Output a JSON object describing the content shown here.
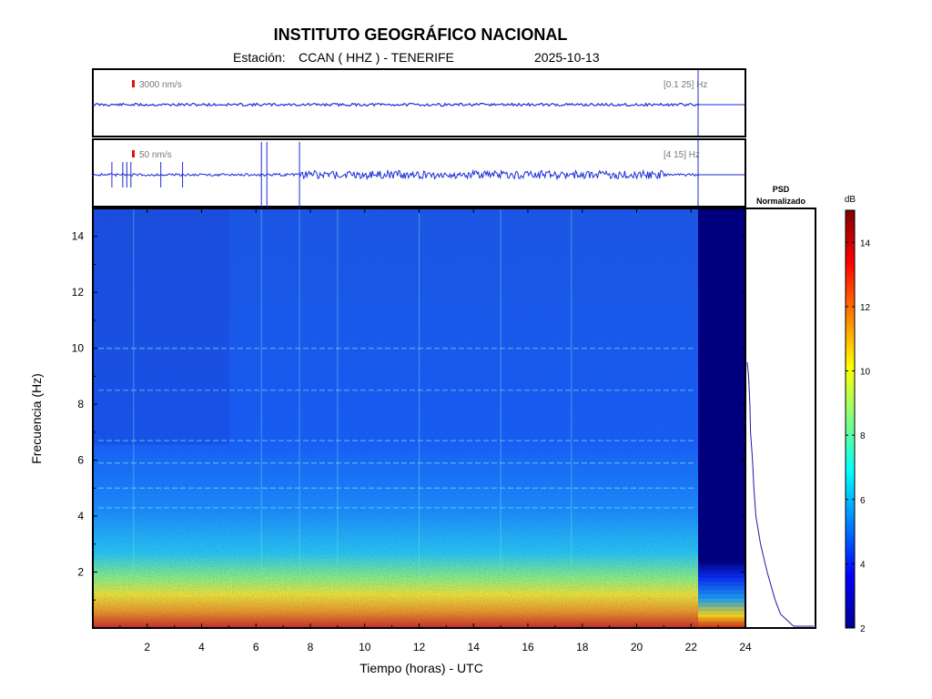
{
  "header": {
    "title": "INSTITUTO GEOGRÁFICO NACIONAL",
    "station_label": "Estación:",
    "station": "CCAN ( HHZ ) - TENERIFE",
    "date": "2025-10-13"
  },
  "chart_data": [
    {
      "type": "line",
      "panel": "seismogram-broadband",
      "scale_label": "3000 nm/s",
      "filter_label": "[0.1 25] Hz",
      "x_range": [
        0,
        24
      ],
      "data_end_hour": 22.3
    },
    {
      "type": "line",
      "panel": "seismogram-filtered",
      "scale_label": "50 nm/s",
      "filter_label": "[4 15] Hz",
      "x_range": [
        0,
        24
      ],
      "data_end_hour": 22.3,
      "spikes_hours": [
        0.7,
        1.1,
        1.25,
        1.4,
        2.5,
        3.3,
        6.2,
        6.4,
        7.6
      ]
    },
    {
      "type": "heatmap",
      "panel": "spectrogram",
      "xlabel": "Tiempo (horas) - UTC",
      "ylabel": "Frecuencia  (Hz)",
      "xlim": [
        0,
        24
      ],
      "ylim": [
        0,
        15
      ],
      "x_ticks": [
        "2",
        "4",
        "6",
        "8",
        "10",
        "12",
        "14",
        "16",
        "18",
        "20",
        "22",
        "24"
      ],
      "y_ticks": [
        "2",
        "4",
        "6",
        "8",
        "10",
        "12",
        "14"
      ],
      "data_end_hour": 22.3,
      "horizontal_lines_hz": [
        4.3,
        5.0,
        5.9,
        6.7,
        8.5,
        10.0
      ]
    },
    {
      "type": "line",
      "panel": "psd",
      "title_line1": "PSD",
      "title_line2": "Normalizado",
      "psd_hz": [
        9.5,
        9.0,
        8.0,
        7.0,
        6.0,
        5.0,
        4.0,
        3.0,
        2.0,
        1.0,
        0.5,
        0.1
      ],
      "psd_norm": [
        0.0,
        0.02,
        0.04,
        0.05,
        0.08,
        0.1,
        0.13,
        0.2,
        0.3,
        0.42,
        0.5,
        0.68
      ]
    },
    {
      "type": "heatmap",
      "panel": "colorbar",
      "unit": "dB",
      "range": [
        2,
        15
      ],
      "ticks": [
        "2",
        "4",
        "6",
        "8",
        "10",
        "12",
        "14"
      ],
      "colormap": [
        "#00008f",
        "#0000ff",
        "#0080ff",
        "#00ffff",
        "#80ff80",
        "#ffff00",
        "#ff8000",
        "#ff0000",
        "#800000"
      ]
    }
  ]
}
